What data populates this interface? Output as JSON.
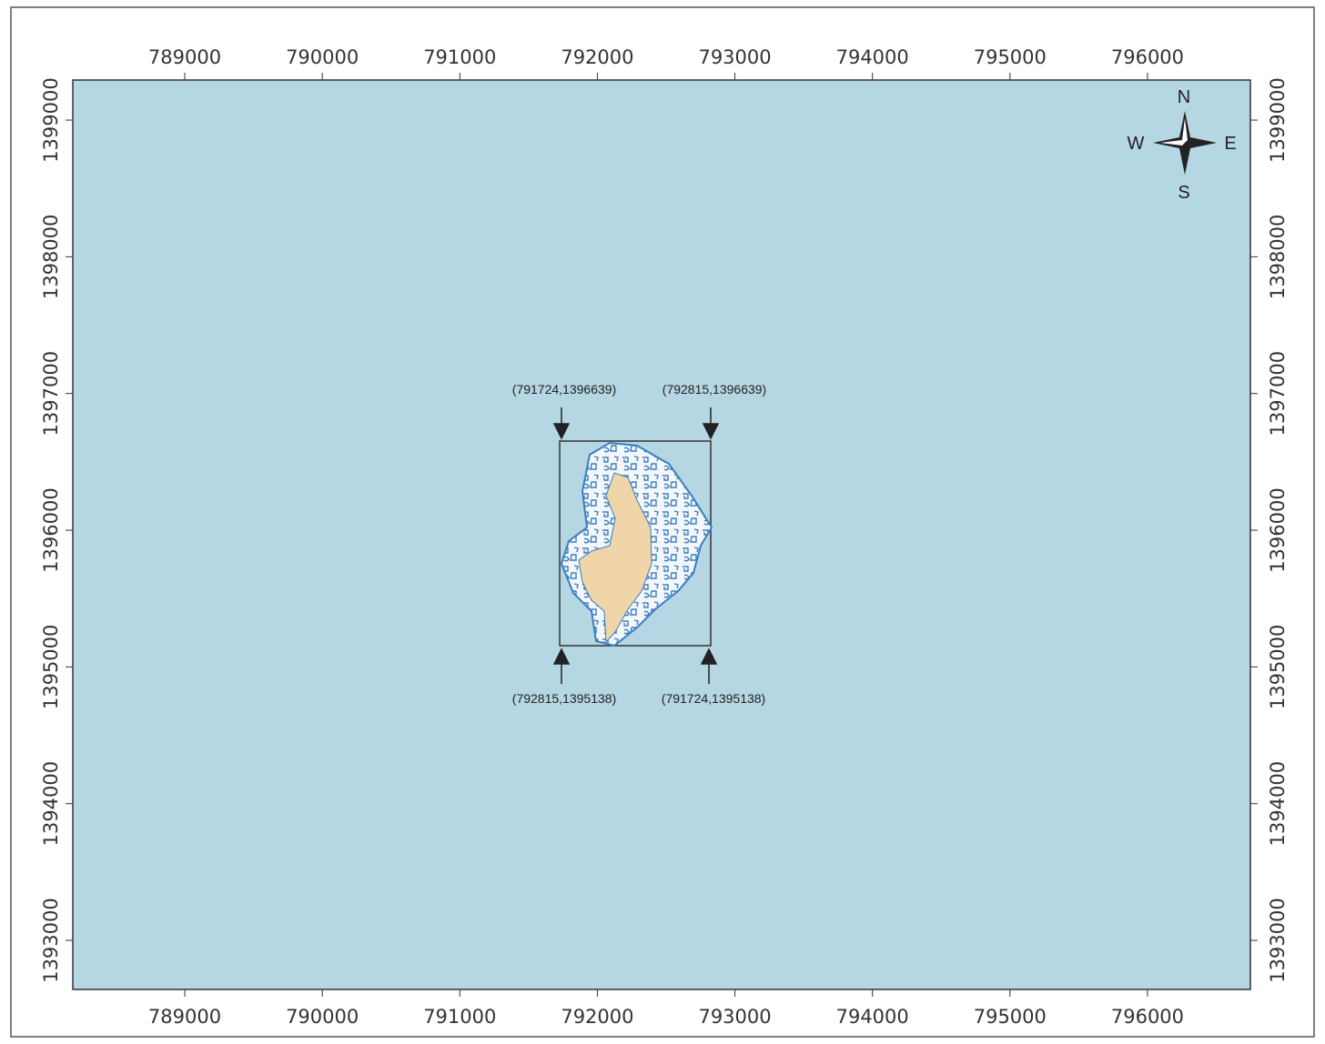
{
  "map": {
    "xlim": [
      788186,
      796748
    ],
    "ylim": [
      1392641,
      1399293
    ],
    "xticks": [
      789000,
      790000,
      791000,
      792000,
      793000,
      794000,
      795000,
      796000
    ],
    "yticks": [
      1393000,
      1394000,
      1395000,
      1396000,
      1397000,
      1398000,
      1399000
    ],
    "compass": {
      "north": "N",
      "south": "S",
      "west": "W",
      "east": "E"
    },
    "corners": {
      "top_left": "(791724,1396639)",
      "top_right": "(792815,1396639)",
      "bottom_left": "(792815,1395138)",
      "bottom_right": "(791724,1395138)"
    }
  }
}
